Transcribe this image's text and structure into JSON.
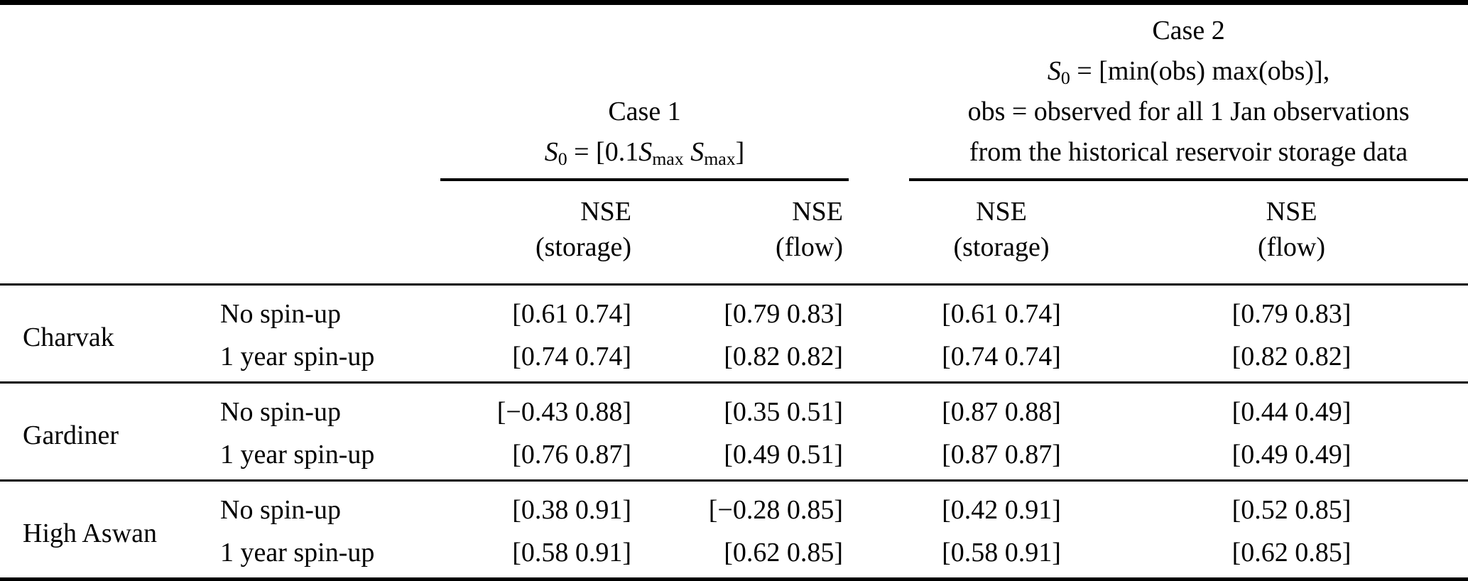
{
  "header": {
    "case1": {
      "title": "Case 1",
      "formula": [
        {
          "t": "S",
          "i": 1
        },
        {
          "t": "0",
          "s": 1
        },
        {
          "t": " = [0.1"
        },
        {
          "t": "S",
          "i": 1
        },
        {
          "t": "max",
          "s": 1
        },
        {
          "t": " "
        },
        {
          "t": "S",
          "i": 1
        },
        {
          "t": "max",
          "s": 1
        },
        {
          "t": "]"
        }
      ]
    },
    "case2": {
      "title": "Case 2",
      "formula": [
        {
          "t": "S",
          "i": 1
        },
        {
          "t": "0",
          "s": 1
        },
        {
          "t": " = [min(obs) max(obs)],"
        }
      ],
      "line3": "obs = observed for all 1 Jan observations",
      "line4": "from the historical reservoir storage data"
    },
    "subcols": {
      "nse": "NSE",
      "storage": "(storage)",
      "flow": "(flow)"
    }
  },
  "rows": [
    {
      "name": "Charvak",
      "subrows": [
        {
          "label": "No spin-up",
          "c1_storage": "[0.61 0.74]",
          "c1_flow": "[0.79 0.83]",
          "c2_storage": "[0.61 0.74]",
          "c2_flow": "[0.79 0.83]"
        },
        {
          "label": "1 year spin-up",
          "c1_storage": "[0.74 0.74]",
          "c1_flow": "[0.82 0.82]",
          "c2_storage": "[0.74 0.74]",
          "c2_flow": "[0.82 0.82]"
        }
      ]
    },
    {
      "name": "Gardiner",
      "subrows": [
        {
          "label": "No spin-up",
          "c1_storage": "[−0.43 0.88]",
          "c1_flow": "[0.35 0.51]",
          "c2_storage": "[0.87 0.88]",
          "c2_flow": "[0.44 0.49]"
        },
        {
          "label": "1 year spin-up",
          "c1_storage": "[0.76 0.87]",
          "c1_flow": "[0.49 0.51]",
          "c2_storage": "[0.87 0.87]",
          "c2_flow": "[0.49 0.49]"
        }
      ]
    },
    {
      "name": "High Aswan",
      "subrows": [
        {
          "label": "No spin-up",
          "c1_storage": "[0.38 0.91]",
          "c1_flow": "[−0.28 0.85]",
          "c2_storage": "[0.42 0.91]",
          "c2_flow": "[0.52 0.85]"
        },
        {
          "label": "1 year spin-up",
          "c1_storage": "[0.58 0.91]",
          "c1_flow": "[0.62 0.85]",
          "c2_storage": "[0.58 0.91]",
          "c2_flow": "[0.62 0.85]"
        }
      ]
    }
  ],
  "colors": {
    "text": "#000000",
    "background": "#ffffff",
    "rule": "#000000"
  }
}
